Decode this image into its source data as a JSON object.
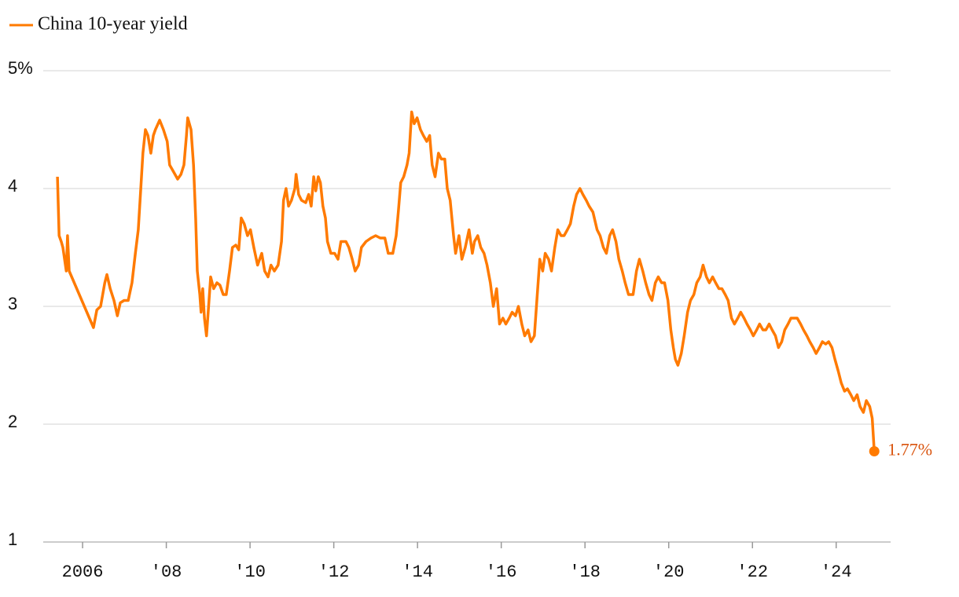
{
  "chart_data": {
    "type": "line",
    "series": [
      {
        "name": "China 10-year yield",
        "color": "#ff7a00",
        "x": [
          2005.4,
          2005.44,
          2005.49,
          2005.53,
          2005.61,
          2005.64,
          2005.68,
          2006.26,
          2006.34,
          2006.43,
          2006.53,
          2006.58,
          2006.66,
          2006.75,
          2006.83,
          2006.9,
          2006.99,
          2007.09,
          2007.18,
          2007.26,
          2007.33,
          2007.39,
          2007.44,
          2007.5,
          2007.56,
          2007.63,
          2007.69,
          2007.74,
          2007.84,
          2007.93,
          2008.02,
          2008.08,
          2008.16,
          2008.27,
          2008.35,
          2008.42,
          2008.48,
          2008.51,
          2008.59,
          2008.65,
          2008.7,
          2008.74,
          2008.8,
          2008.83,
          2008.87,
          2008.91,
          2008.96,
          2009.02,
          2009.06,
          2009.13,
          2009.21,
          2009.28,
          2009.36,
          2009.43,
          2009.51,
          2009.58,
          2009.66,
          2009.73,
          2009.79,
          2009.86,
          2009.94,
          2010.01,
          2010.09,
          2010.18,
          2010.28,
          2010.35,
          2010.43,
          2010.5,
          2010.58,
          2010.67,
          2010.75,
          2010.8,
          2010.86,
          2010.92,
          2010.99,
          2011.07,
          2011.1,
          2011.16,
          2011.23,
          2011.33,
          2011.4,
          2011.46,
          2011.52,
          2011.57,
          2011.63,
          2011.68,
          2011.74,
          2011.8,
          2011.85,
          2011.93,
          2012.02,
          2012.1,
          2012.17,
          2012.29,
          2012.36,
          2012.44,
          2012.51,
          2012.59,
          2012.66,
          2012.77,
          2012.89,
          2013.0,
          2013.11,
          2013.22,
          2013.3,
          2013.41,
          2013.49,
          2013.54,
          2013.6,
          2013.67,
          2013.75,
          2013.8,
          2013.86,
          2013.92,
          2013.99,
          2014.07,
          2014.14,
          2014.22,
          2014.29,
          2014.35,
          2014.42,
          2014.5,
          2014.57,
          2014.65,
          2014.71,
          2014.78,
          2014.86,
          2014.91,
          2014.99,
          2015.06,
          2015.14,
          2015.23,
          2015.31,
          2015.36,
          2015.44,
          2015.51,
          2015.59,
          2015.66,
          2015.74,
          2015.81,
          2015.89,
          2015.96,
          2016.04,
          2016.11,
          2016.19,
          2016.26,
          2016.34,
          2016.41,
          2016.49,
          2016.56,
          2016.64,
          2016.71,
          2016.79,
          2016.86,
          2016.92,
          2016.99,
          2017.05,
          2017.13,
          2017.2,
          2017.28,
          2017.35,
          2017.43,
          2017.5,
          2017.58,
          2017.65,
          2017.73,
          2017.8,
          2017.88,
          2017.95,
          2018.03,
          2018.1,
          2018.19,
          2018.29,
          2018.36,
          2018.44,
          2018.51,
          2018.59,
          2018.66,
          2018.74,
          2018.81,
          2018.89,
          2018.96,
          2019.04,
          2019.15,
          2019.23,
          2019.3,
          2019.38,
          2019.45,
          2019.53,
          2019.6,
          2019.68,
          2019.75,
          2019.83,
          2019.9,
          2019.98,
          2020.05,
          2020.11,
          2020.16,
          2020.22,
          2020.3,
          2020.37,
          2020.45,
          2020.52,
          2020.6,
          2020.67,
          2020.75,
          2020.82,
          2020.9,
          2020.97,
          2021.05,
          2021.12,
          2021.2,
          2021.27,
          2021.35,
          2021.42,
          2021.5,
          2021.57,
          2021.65,
          2021.72,
          2021.8,
          2021.87,
          2021.95,
          2022.02,
          2022.1,
          2022.17,
          2022.25,
          2022.32,
          2022.4,
          2022.47,
          2022.55,
          2022.62,
          2022.7,
          2022.77,
          2022.85,
          2022.92,
          2023.0,
          2023.07,
          2023.15,
          2023.22,
          2023.3,
          2023.37,
          2023.45,
          2023.52,
          2023.6,
          2023.67,
          2023.75,
          2023.82,
          2023.9,
          2023.97,
          2024.05,
          2024.12,
          2024.2,
          2024.27,
          2024.35,
          2024.42,
          2024.5,
          2024.57,
          2024.65,
          2024.72,
          2024.8,
          2024.86,
          2024.91
        ],
        "values": [
          4.1,
          3.6,
          3.55,
          3.5,
          3.3,
          3.6,
          3.3,
          2.82,
          2.97,
          3.0,
          3.2,
          3.27,
          3.15,
          3.05,
          2.92,
          3.03,
          3.05,
          3.05,
          3.2,
          3.45,
          3.65,
          4.0,
          4.3,
          4.5,
          4.45,
          4.3,
          4.45,
          4.5,
          4.58,
          4.5,
          4.4,
          4.2,
          4.15,
          4.08,
          4.12,
          4.2,
          4.45,
          4.6,
          4.5,
          4.2,
          3.75,
          3.3,
          3.1,
          2.95,
          3.15,
          2.9,
          2.75,
          3.05,
          3.25,
          3.15,
          3.2,
          3.18,
          3.1,
          3.1,
          3.3,
          3.5,
          3.52,
          3.48,
          3.75,
          3.7,
          3.6,
          3.65,
          3.5,
          3.35,
          3.45,
          3.3,
          3.25,
          3.35,
          3.3,
          3.35,
          3.55,
          3.9,
          4.0,
          3.85,
          3.9,
          4.0,
          4.12,
          3.95,
          3.9,
          3.88,
          3.95,
          3.85,
          4.1,
          3.98,
          4.1,
          4.05,
          3.85,
          3.75,
          3.55,
          3.45,
          3.45,
          3.4,
          3.55,
          3.55,
          3.5,
          3.4,
          3.3,
          3.35,
          3.5,
          3.55,
          3.58,
          3.6,
          3.58,
          3.58,
          3.45,
          3.45,
          3.6,
          3.8,
          4.05,
          4.1,
          4.2,
          4.3,
          4.65,
          4.55,
          4.6,
          4.5,
          4.45,
          4.4,
          4.45,
          4.2,
          4.1,
          4.3,
          4.25,
          4.25,
          4.0,
          3.9,
          3.6,
          3.45,
          3.6,
          3.4,
          3.5,
          3.65,
          3.45,
          3.55,
          3.6,
          3.5,
          3.45,
          3.35,
          3.2,
          3.0,
          3.15,
          2.85,
          2.9,
          2.85,
          2.9,
          2.95,
          2.92,
          3.0,
          2.85,
          2.75,
          2.8,
          2.7,
          2.75,
          3.1,
          3.4,
          3.3,
          3.45,
          3.4,
          3.3,
          3.5,
          3.65,
          3.6,
          3.6,
          3.65,
          3.7,
          3.85,
          3.95,
          4.0,
          3.95,
          3.9,
          3.85,
          3.8,
          3.65,
          3.6,
          3.5,
          3.45,
          3.6,
          3.65,
          3.55,
          3.4,
          3.3,
          3.2,
          3.1,
          3.1,
          3.3,
          3.4,
          3.3,
          3.2,
          3.1,
          3.05,
          3.2,
          3.25,
          3.2,
          3.2,
          3.05,
          2.8,
          2.65,
          2.55,
          2.5,
          2.6,
          2.75,
          2.95,
          3.05,
          3.1,
          3.2,
          3.25,
          3.35,
          3.25,
          3.2,
          3.25,
          3.2,
          3.15,
          3.15,
          3.1,
          3.05,
          2.9,
          2.85,
          2.9,
          2.95,
          2.9,
          2.85,
          2.8,
          2.75,
          2.8,
          2.85,
          2.8,
          2.8,
          2.85,
          2.8,
          2.75,
          2.65,
          2.7,
          2.8,
          2.85,
          2.9,
          2.9,
          2.9,
          2.85,
          2.8,
          2.75,
          2.7,
          2.65,
          2.6,
          2.65,
          2.7,
          2.68,
          2.7,
          2.65,
          2.55,
          2.45,
          2.35,
          2.28,
          2.3,
          2.25,
          2.2,
          2.25,
          2.15,
          2.1,
          2.2,
          2.15,
          2.05,
          1.77
        ]
      }
    ],
    "annotation": {
      "value": 1.77,
      "label": "1.77%"
    },
    "xlim": [
      2005.06,
      2025.3
    ],
    "xticks": [
      {
        "value": 2006,
        "label": "2006"
      },
      {
        "value": 2008,
        "label": "'08"
      },
      {
        "value": 2010,
        "label": "'10"
      },
      {
        "value": 2012,
        "label": "'12"
      },
      {
        "value": 2014,
        "label": "'14"
      },
      {
        "value": 2016,
        "label": "'16"
      },
      {
        "value": 2018,
        "label": "'18"
      },
      {
        "value": 2020,
        "label": "'20"
      },
      {
        "value": 2022,
        "label": "'22"
      },
      {
        "value": 2024,
        "label": "'24"
      }
    ],
    "ylim": [
      1,
      5
    ],
    "yticks": [
      1,
      2,
      3,
      4,
      {
        "value": 5,
        "label": "5%"
      }
    ],
    "grid": true
  }
}
